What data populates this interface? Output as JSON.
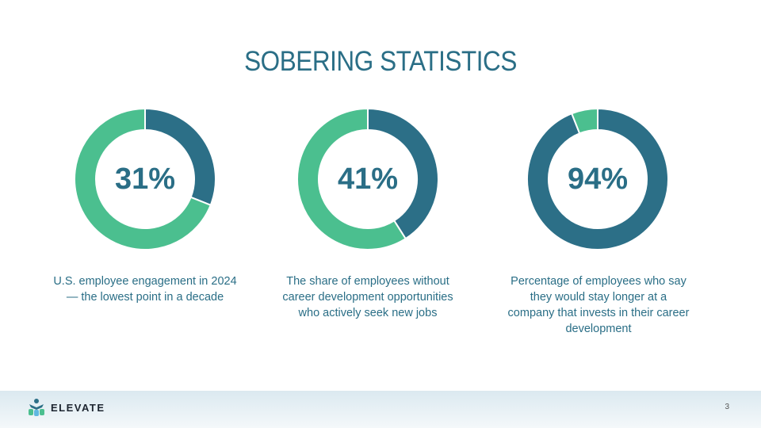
{
  "title": "SOBERING STATISTICS",
  "colors": {
    "primary": "#2c6f87",
    "secondary": "#4bbf8f"
  },
  "chart_data": [
    {
      "type": "pie",
      "label": "31%",
      "values": [
        31,
        69
      ],
      "caption": "U.S. employee engagement in 2024 — the lowest point in a decade"
    },
    {
      "type": "pie",
      "label": "41%",
      "values": [
        41,
        59
      ],
      "caption": "The share of employees without career development opportunities who actively seek new jobs"
    },
    {
      "type": "pie",
      "label": "94%",
      "values": [
        94,
        6
      ],
      "caption": "Percentage of employees who say they would stay longer at a company that invests in their career development"
    }
  ],
  "footer": {
    "brand": "ELEVATE",
    "page": "3"
  }
}
